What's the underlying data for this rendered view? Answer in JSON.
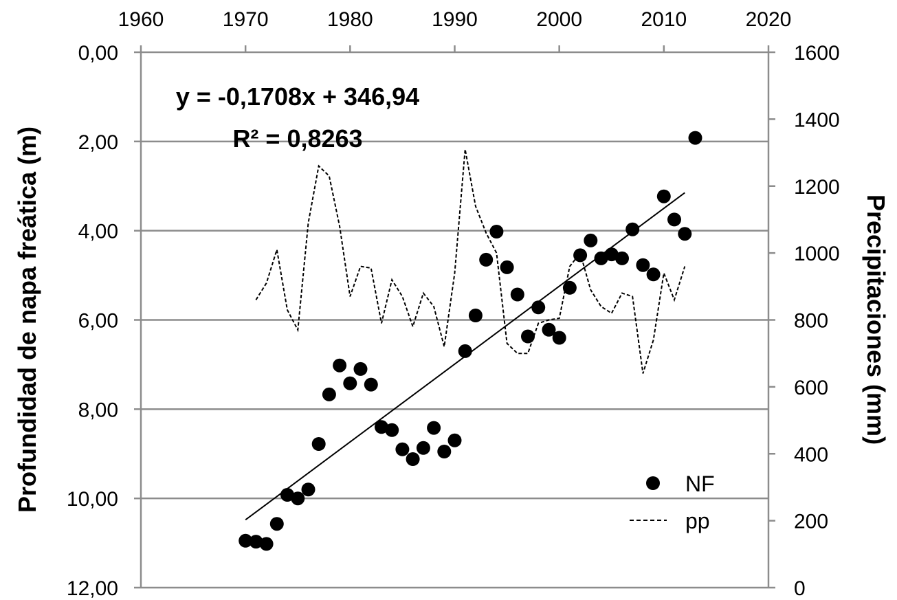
{
  "chart_data": {
    "type": "scatter",
    "title": "",
    "ylabel": "Profundidad de napa freática (m)",
    "y2label": "Precipitaciones (mm)",
    "xlim": [
      1960,
      2020
    ],
    "ylim": [
      12,
      0
    ],
    "y2lim": [
      0,
      1600
    ],
    "x_ticks": [
      "1960",
      "1970",
      "1980",
      "1990",
      "2000",
      "2010",
      "2020"
    ],
    "y_ticks": [
      "0,00",
      "2,00",
      "4,00",
      "6,00",
      "8,00",
      "10,00",
      "12,00"
    ],
    "y2_ticks": [
      "0",
      "200",
      "400",
      "600",
      "800",
      "1000",
      "1200",
      "1400",
      "1600"
    ],
    "grid": true,
    "legend_position": "bottom-right",
    "equation": "y = -0,1708x + 346,94",
    "r_squared": "R² = 0,8263",
    "trendline": {
      "x": [
        1970,
        2012
      ],
      "y": [
        10.48,
        3.15
      ]
    },
    "series": [
      {
        "name": "NF",
        "kind": "markers",
        "axis": "left",
        "color": "#000000",
        "points": [
          [
            1970,
            10.95
          ],
          [
            1971,
            10.97
          ],
          [
            1972,
            11.02
          ],
          [
            1973,
            10.57
          ],
          [
            1974,
            9.92
          ],
          [
            1975,
            10.0
          ],
          [
            1976,
            9.8
          ],
          [
            1977,
            8.78
          ],
          [
            1978,
            7.67
          ],
          [
            1979,
            7.02
          ],
          [
            1980,
            7.42
          ],
          [
            1981,
            7.1
          ],
          [
            1982,
            7.45
          ],
          [
            1983,
            8.4
          ],
          [
            1984,
            8.47
          ],
          [
            1985,
            8.9
          ],
          [
            1986,
            9.12
          ],
          [
            1987,
            8.87
          ],
          [
            1988,
            8.42
          ],
          [
            1989,
            8.95
          ],
          [
            1990,
            8.7
          ],
          [
            1991,
            6.7
          ],
          [
            1992,
            5.9
          ],
          [
            1993,
            4.65
          ],
          [
            1994,
            4.02
          ],
          [
            1995,
            4.82
          ],
          [
            1996,
            5.43
          ],
          [
            1997,
            6.37
          ],
          [
            1998,
            5.72
          ],
          [
            1999,
            6.22
          ],
          [
            2000,
            6.4
          ],
          [
            2001,
            5.28
          ],
          [
            2002,
            4.55
          ],
          [
            2003,
            4.22
          ],
          [
            2004,
            4.62
          ],
          [
            2005,
            4.53
          ],
          [
            2006,
            4.62
          ],
          [
            2007,
            3.97
          ],
          [
            2008,
            4.77
          ],
          [
            2009,
            4.98
          ],
          [
            2010,
            3.23
          ],
          [
            2011,
            3.75
          ],
          [
            2012,
            4.07
          ],
          [
            2013,
            1.92
          ]
        ]
      },
      {
        "name": "pp",
        "kind": "dashed-line",
        "axis": "right",
        "color": "#000000",
        "points": [
          [
            1971,
            860
          ],
          [
            1972,
            910
          ],
          [
            1973,
            1010
          ],
          [
            1974,
            830
          ],
          [
            1975,
            770
          ],
          [
            1976,
            1090
          ],
          [
            1977,
            1260
          ],
          [
            1978,
            1230
          ],
          [
            1979,
            1080
          ],
          [
            1980,
            870
          ],
          [
            1981,
            960
          ],
          [
            1982,
            955
          ],
          [
            1983,
            790
          ],
          [
            1984,
            920
          ],
          [
            1985,
            870
          ],
          [
            1986,
            780
          ],
          [
            1987,
            880
          ],
          [
            1988,
            840
          ],
          [
            1989,
            720
          ],
          [
            1990,
            940
          ],
          [
            1991,
            1310
          ],
          [
            1992,
            1140
          ],
          [
            1993,
            1060
          ],
          [
            1994,
            1000
          ],
          [
            1995,
            730
          ],
          [
            1996,
            700
          ],
          [
            1997,
            700
          ],
          [
            1998,
            790
          ],
          [
            1999,
            800
          ],
          [
            2000,
            805
          ],
          [
            2001,
            960
          ],
          [
            2002,
            1000
          ],
          [
            2003,
            890
          ],
          [
            2004,
            840
          ],
          [
            2005,
            820
          ],
          [
            2006,
            880
          ],
          [
            2007,
            870
          ],
          [
            2008,
            640
          ],
          [
            2009,
            740
          ],
          [
            2010,
            940
          ],
          [
            2011,
            860
          ],
          [
            2012,
            960
          ]
        ]
      }
    ]
  }
}
